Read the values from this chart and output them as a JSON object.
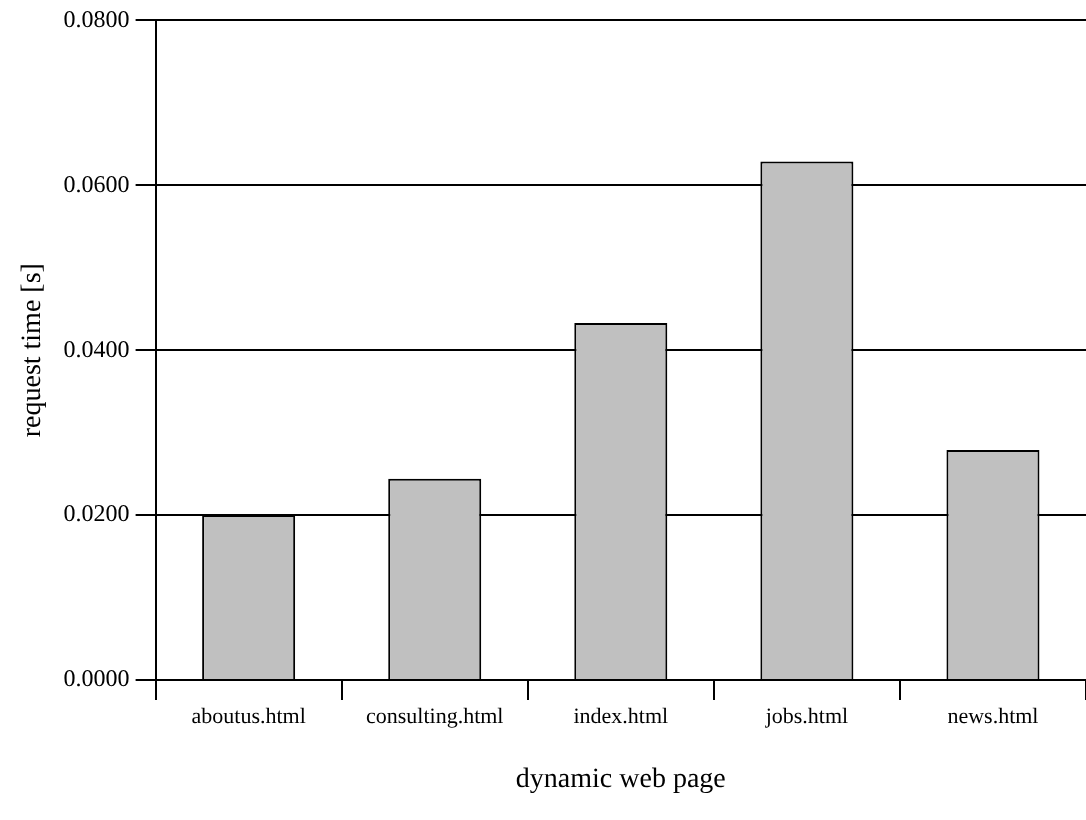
{
  "chart_data": {
    "type": "bar",
    "xlabel": "dynamic web page",
    "ylabel": "request time [s]",
    "categories": [
      "aboutus.html",
      "consulting.html",
      "index.html",
      "jobs.html",
      "news.html"
    ],
    "values": [
      0.02,
      0.0244,
      0.0433,
      0.0629,
      0.0279
    ],
    "color": "#c0c0c0",
    "ylim": [
      0,
      0.08
    ],
    "yticks": [
      {
        "value": 0,
        "label": "0.0000"
      },
      {
        "value": 0.02,
        "label": "0.0200"
      },
      {
        "value": 0.04,
        "label": "0.0400"
      },
      {
        "value": 0.06,
        "label": "0.0600"
      },
      {
        "value": 0.08,
        "label": "0.0800"
      }
    ],
    "grid": "y"
  }
}
